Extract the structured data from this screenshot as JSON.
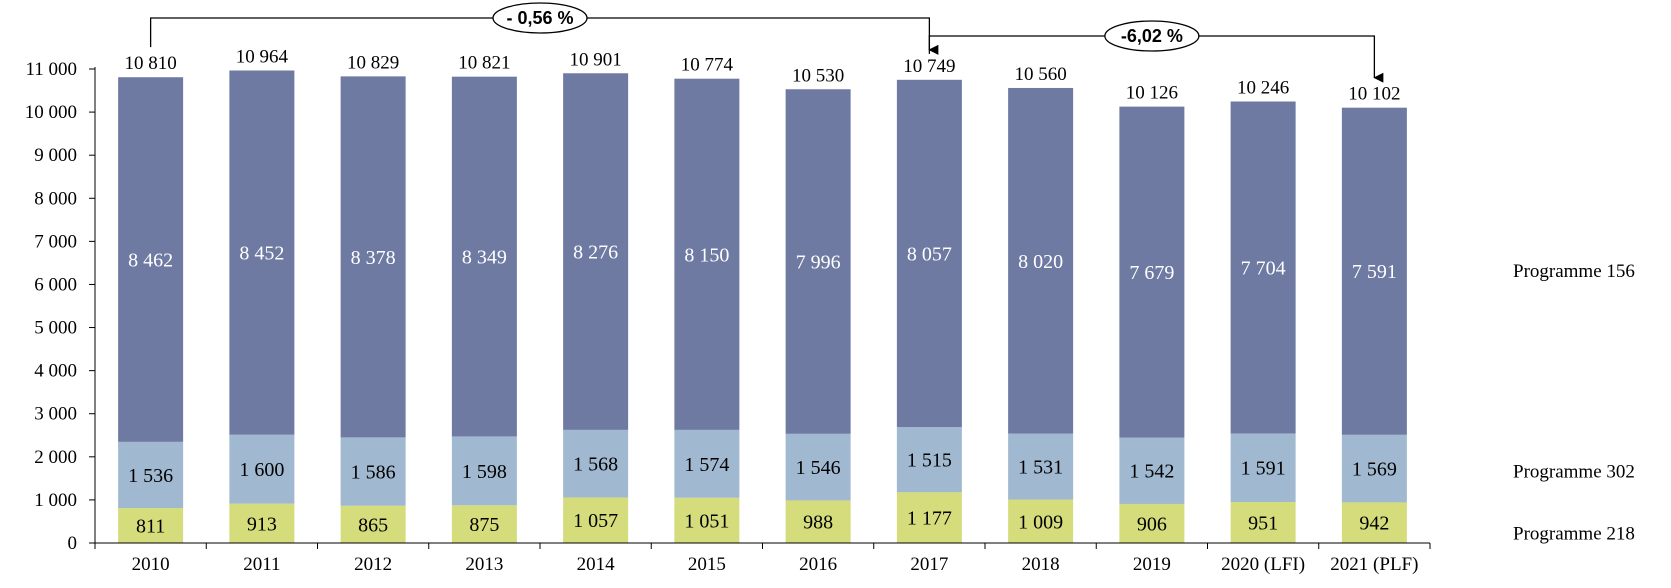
{
  "chart_data": {
    "type": "bar",
    "stacked": true,
    "categories": [
      "2010",
      "2011",
      "2012",
      "2013",
      "2014",
      "2015",
      "2016",
      "2017",
      "2018",
      "2019",
      "2020 (LFI)",
      "2021 (PLF)"
    ],
    "series": [
      {
        "name": "Programme 218",
        "color": "#d4dc7c",
        "label_color": "#000000",
        "values": [
          811,
          913,
          865,
          875,
          1057,
          1051,
          988,
          1177,
          1009,
          906,
          951,
          942
        ],
        "labels": [
          "811",
          "913",
          "865",
          "875",
          "1 057",
          "1 051",
          "988",
          "1 177",
          "1 009",
          "906",
          "951",
          "942"
        ]
      },
      {
        "name": "Programme 302",
        "color": "#a0b8d0",
        "label_color": "#000000",
        "values": [
          1536,
          1600,
          1586,
          1598,
          1568,
          1574,
          1546,
          1515,
          1531,
          1542,
          1591,
          1569
        ],
        "labels": [
          "1 536",
          "1 600",
          "1 586",
          "1 598",
          "1 568",
          "1 574",
          "1 546",
          "1 515",
          "1 531",
          "1 542",
          "1 591",
          "1 569"
        ]
      },
      {
        "name": "Programme 156",
        "color": "#6e7aa2",
        "label_color": "#ffffff",
        "values": [
          8462,
          8452,
          8378,
          8349,
          8276,
          8150,
          7996,
          8057,
          8020,
          7679,
          7704,
          7591
        ],
        "labels": [
          "8 462",
          "8 452",
          "8 378",
          "8 349",
          "8 276",
          "8 150",
          "7 996",
          "8 057",
          "8 020",
          "7 679",
          "7 704",
          "7 591"
        ]
      }
    ],
    "totals": [
      10810,
      10964,
      10829,
      10821,
      10901,
      10774,
      10530,
      10749,
      10560,
      10126,
      10246,
      10102
    ],
    "total_labels": [
      "10 810",
      "10 964",
      "10 829",
      "10 821",
      "10 901",
      "10 774",
      "10 530",
      "10 749",
      "10 560",
      "10 126",
      "10 246",
      "10 102"
    ],
    "ylim": [
      0,
      11000
    ],
    "yticks": [
      0,
      1000,
      2000,
      3000,
      4000,
      5000,
      6000,
      7000,
      8000,
      9000,
      10000,
      11000
    ],
    "ytick_labels": [
      "0",
      "1 000",
      "2 000",
      "3 000",
      "4 000",
      "5 000",
      "6 000",
      "7 000",
      "8 000",
      "9 000",
      "10 000",
      "11 000"
    ],
    "grid": false,
    "legend_placement": "right",
    "annotations": [
      {
        "from": "2010",
        "to": "2017",
        "label": "- 0,56 %"
      },
      {
        "from": "2017",
        "to": "2021 (PLF)",
        "label": "-6,02 %"
      }
    ]
  }
}
